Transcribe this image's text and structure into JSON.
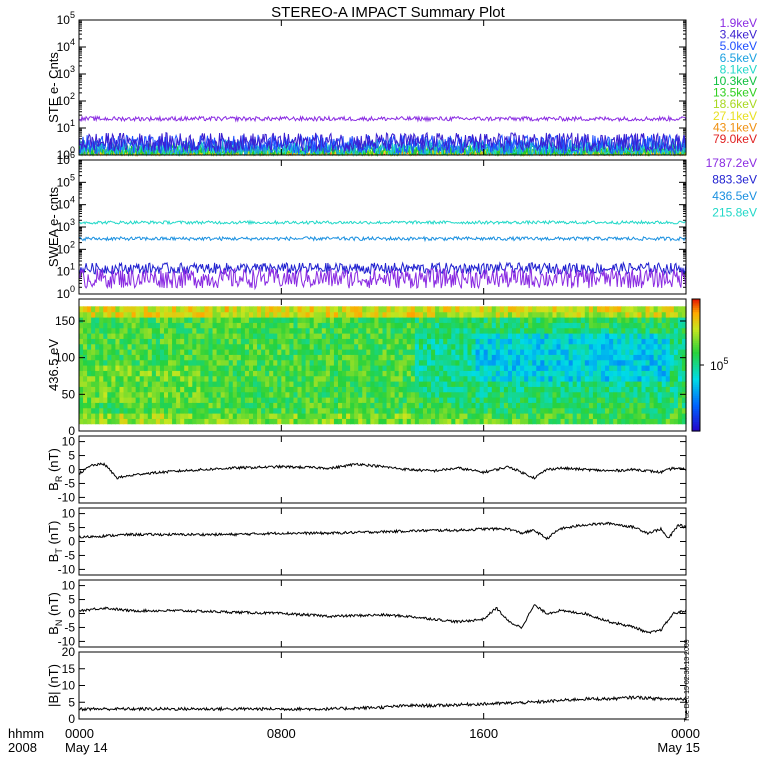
{
  "title": "STEREO-A IMPACT Summary Plot",
  "time_axis": {
    "corner_top": "hhmm",
    "corner_bottom": "2008",
    "ticks": [
      {
        "t": 0,
        "hhmm": "0000",
        "date": "May 14"
      },
      {
        "t": 8,
        "hhmm": "0800",
        "date": ""
      },
      {
        "t": 16,
        "hhmm": "1600",
        "date": ""
      },
      {
        "t": 24,
        "hhmm": "0000",
        "date": "May 15"
      }
    ]
  },
  "side_stamp": "Tue Dec 15 02:30:13 2009",
  "chart_data": [
    {
      "type": "line",
      "panel": "ste",
      "ylabel": "STE e- Cnts",
      "yscale": "log",
      "ylim": [
        1,
        100000
      ],
      "yticks": [
        {
          "v": 1,
          "m": "10",
          "e": "0"
        },
        {
          "v": 10,
          "m": "10",
          "e": "1"
        },
        {
          "v": 100,
          "m": "10",
          "e": "2"
        },
        {
          "v": 1000,
          "m": "10",
          "e": "3"
        },
        {
          "v": 10000,
          "m": "10",
          "e": "4"
        },
        {
          "v": 100000,
          "m": "10",
          "e": "5"
        }
      ],
      "series": [
        {
          "name": "1.9keV",
          "color": "#8a2be2",
          "level": 22,
          "noise": 0.08
        },
        {
          "name": "3.4keV",
          "color": "#3a1fd0",
          "level": 3.0,
          "noise": 0.35
        },
        {
          "name": "5.0keV",
          "color": "#1f4fff",
          "level": 2.5,
          "noise": 0.35
        },
        {
          "name": "6.5keV",
          "color": "#1aa0e0",
          "level": 2.0,
          "noise": 0.3
        },
        {
          "name": "8.1keV",
          "color": "#20d8c8",
          "level": 1.7,
          "noise": 0.25
        },
        {
          "name": "10.3keV",
          "color": "#10c040",
          "level": 1.5,
          "noise": 0.22
        },
        {
          "name": "13.5keV",
          "color": "#30d020",
          "level": 1.35,
          "noise": 0.2
        },
        {
          "name": "18.6keV",
          "color": "#a8d820",
          "level": 1.25,
          "noise": 0.18
        },
        {
          "name": "27.1keV",
          "color": "#e8e020",
          "level": 1.15,
          "noise": 0.15
        },
        {
          "name": "43.1keV",
          "color": "#f09010",
          "level": 1.1,
          "noise": 0.12
        },
        {
          "name": "79.0keV",
          "color": "#e02020",
          "level": 1.05,
          "noise": 0.1
        }
      ]
    },
    {
      "type": "line",
      "panel": "swea",
      "ylabel": "SWEA e- cnts",
      "yscale": "log",
      "ylim": [
        1,
        1000000
      ],
      "yticks": [
        {
          "v": 1,
          "m": "10",
          "e": "0"
        },
        {
          "v": 10,
          "m": "10",
          "e": "1"
        },
        {
          "v": 100,
          "m": "10",
          "e": "2"
        },
        {
          "v": 1000,
          "m": "10",
          "e": "3"
        },
        {
          "v": 10000,
          "m": "10",
          "e": "4"
        },
        {
          "v": 100000,
          "m": "10",
          "e": "5"
        },
        {
          "v": 1000000,
          "m": "10",
          "e": "6"
        }
      ],
      "series": [
        {
          "name": "1787.2eV",
          "color": "#8a2be2",
          "level": 5,
          "noise": 0.45
        },
        {
          "name": "883.3eV",
          "color": "#2020d0",
          "level": 14,
          "noise": 0.25
        },
        {
          "name": "436.5eV",
          "color": "#1a90e0",
          "level": 300,
          "noise": 0.08
        },
        {
          "name": "215.8eV",
          "color": "#20d8c8",
          "level": 1600,
          "noise": 0.07
        }
      ]
    },
    {
      "type": "heatmap",
      "panel": "spectrogram",
      "ylabel": "436.5 eV",
      "ylim": [
        0,
        180
      ],
      "yticks": [
        0,
        50,
        100,
        150
      ],
      "colorbar_label": "10",
      "colorbar_exp": "5"
    },
    {
      "type": "line",
      "panel": "br",
      "ylabel_main": "B",
      "ylabel_sub": "R",
      "ylabel_unit": " (nT)",
      "ylim": [
        -12,
        12
      ],
      "yticks": [
        -10,
        -5,
        0,
        5,
        10
      ],
      "x": [
        0,
        0.5,
        1.0,
        1.5,
        2.5,
        4,
        6,
        8,
        10,
        11,
        12,
        13,
        14,
        15,
        16,
        17,
        18,
        18.5,
        19,
        20,
        21,
        22,
        23,
        23.5,
        24
      ],
      "values": [
        -1.5,
        1.5,
        2,
        -3,
        -1.5,
        -0.5,
        0.5,
        1,
        0.5,
        2,
        1,
        0,
        -0.5,
        0.5,
        -1,
        1,
        -3,
        0,
        0.5,
        0,
        -0.5,
        0,
        -1,
        0.5,
        0
      ]
    },
    {
      "type": "line",
      "panel": "bt",
      "ylabel_main": "B",
      "ylabel_sub": "T",
      "ylabel_unit": " (nT)",
      "ylim": [
        -12,
        12
      ],
      "yticks": [
        -10,
        -5,
        0,
        5,
        10
      ],
      "x": [
        0,
        1,
        2,
        4,
        6,
        8,
        10,
        12,
        14,
        15,
        16,
        17,
        17.5,
        18,
        18.5,
        19,
        20,
        21,
        22,
        22.5,
        23,
        23.3,
        23.7,
        24
      ],
      "values": [
        1.5,
        2,
        2.5,
        2.5,
        2.5,
        3,
        3,
        3.5,
        4,
        4,
        4.5,
        4.5,
        3,
        4,
        1,
        4.5,
        6,
        6.5,
        5,
        3,
        4.5,
        1,
        6,
        5
      ]
    },
    {
      "type": "line",
      "panel": "bn",
      "ylabel_main": "B",
      "ylabel_sub": "N",
      "ylabel_unit": " (nT)",
      "ylim": [
        -12,
        12
      ],
      "yticks": [
        -10,
        -5,
        0,
        5,
        10
      ],
      "x": [
        0,
        1,
        2,
        4,
        6,
        8,
        10,
        12,
        13,
        14,
        15,
        16,
        16.5,
        17,
        17.5,
        18,
        18.5,
        19,
        20,
        21,
        22,
        22.5,
        23,
        23.5,
        24
      ],
      "values": [
        1,
        2,
        1,
        1,
        0.5,
        0,
        -1,
        -0.5,
        -1,
        -2,
        -3,
        -2,
        2,
        -3,
        -5,
        3,
        0,
        1,
        0,
        -3,
        -5,
        -7,
        -6,
        0,
        1
      ]
    },
    {
      "type": "line",
      "panel": "bmag",
      "ylabel_main": "|B|",
      "ylabel_sub": "",
      "ylabel_unit": " (nT)",
      "ylim": [
        0,
        20
      ],
      "yticks": [
        0,
        5,
        10,
        15,
        20
      ],
      "x": [
        0,
        2,
        4,
        6,
        8,
        10,
        12,
        13,
        14,
        16,
        18,
        19,
        20,
        21,
        22,
        23,
        24
      ],
      "values": [
        3,
        3,
        3,
        3,
        3,
        3,
        3.5,
        4,
        4,
        4.5,
        5,
        5.5,
        6,
        6,
        6.5,
        6,
        6
      ]
    }
  ]
}
